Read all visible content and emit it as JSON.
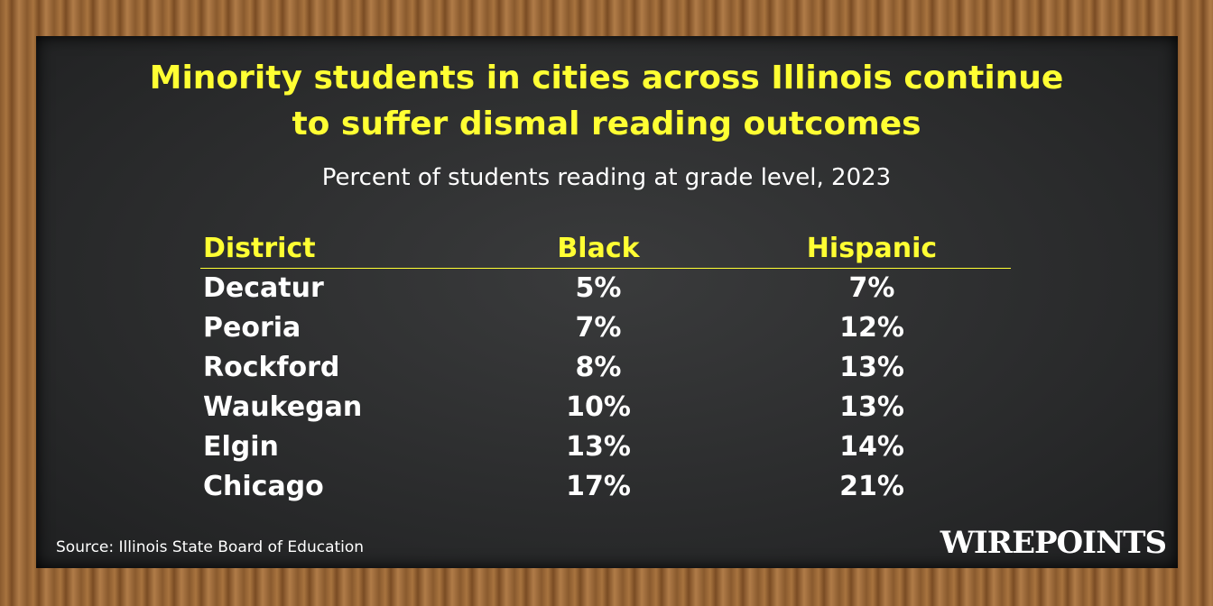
{
  "header": {
    "title_lines": [
      "Minority students in cities across Illinois continue",
      "to suffer dismal reading outcomes"
    ],
    "subtitle": "Percent of students reading at grade level, 2023"
  },
  "table": {
    "columns": [
      "District",
      "Black",
      "Hispanic"
    ],
    "rows": [
      [
        "Decatur",
        "5%",
        "7%"
      ],
      [
        "Peoria",
        "7%",
        "12%"
      ],
      [
        "Rockford",
        "8%",
        "13%"
      ],
      [
        "Waukegan",
        "10%",
        "13%"
      ],
      [
        "Elgin",
        "13%",
        "14%"
      ],
      [
        "Chicago",
        "17%",
        "21%"
      ]
    ]
  },
  "footer": {
    "source": "Source: Illinois State Board of Education",
    "brand": "WIREPOINTS"
  }
}
